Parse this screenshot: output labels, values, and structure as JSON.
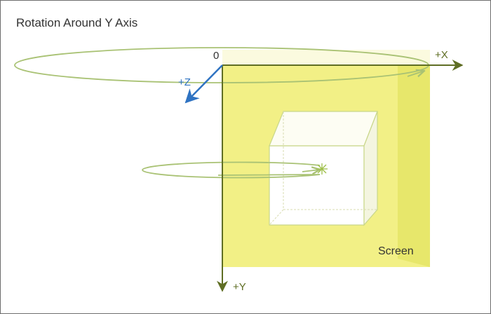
{
  "title": "Rotation Around Y Axis",
  "labels": {
    "origin": "0",
    "x_axis": "+X",
    "y_axis": "+Y",
    "z_axis": "+Z",
    "screen": "Screen"
  },
  "colors": {
    "axis_xy": "#5f6e24",
    "axis_z": "#2f73c2",
    "screen_fill": "#f2f086",
    "screen_edge": "#e6e668",
    "rotation_ring": "#a9c274",
    "text": "#333333",
    "cube_edge": "#c9d78a"
  }
}
